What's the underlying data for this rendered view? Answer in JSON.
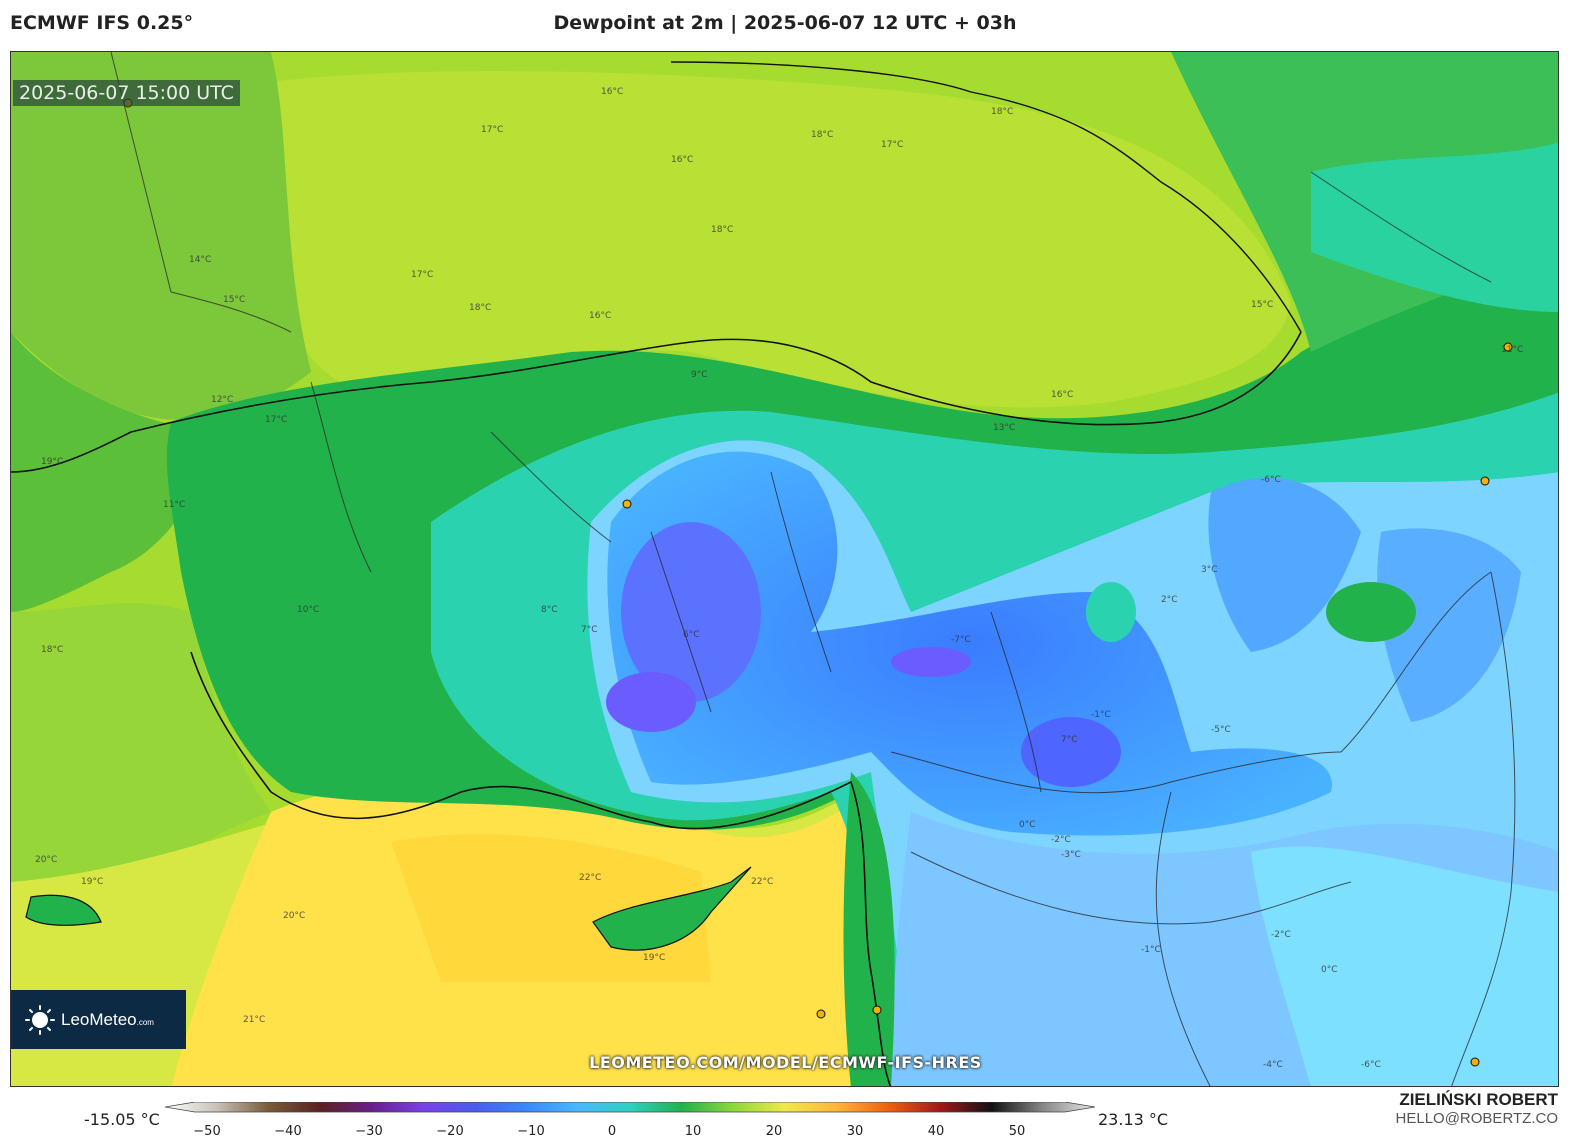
{
  "header": {
    "model": "ECMWF IFS 0.25°",
    "title": "Dewpoint at 2m | 2025-06-07 12 UTC + 03h"
  },
  "map": {
    "timestamp": "2025-06-07 15:00 UTC",
    "watermark": "LEOMETEO.COM/MODEL/ECMWF-IFS-HRES",
    "logo": {
      "name": "LeoMeteo",
      "suffix": ".com",
      "icon": "sun-icon"
    },
    "contour_labels": [
      "16°C",
      "17°C",
      "18°C",
      "17°C",
      "16°C",
      "18°C",
      "18°C",
      "17°C",
      "18°C",
      "16°C",
      "13°C",
      "12°C",
      "14°C",
      "15°C",
      "11°C",
      "19°C",
      "10°C",
      "17°C",
      "16°C",
      "15°C",
      "11°C",
      "9°C",
      "8°C",
      "7°C",
      "6°C",
      "-1°C",
      "2°C",
      "3°C",
      "7°C",
      "-7°C",
      "-6°C",
      "-3°C",
      "-2°C",
      "0°C",
      "-1°C",
      "-2°C",
      "22°C",
      "22°C",
      "19°C",
      "20°C",
      "20°C",
      "21°C",
      "19°C",
      "18°C",
      "0°C",
      "-4°C",
      "-6°C",
      "-5°C"
    ],
    "colors": {
      "sea_north": "#a8dd2e",
      "sea_south": "#ffe24a",
      "land_moist": "#22b24c",
      "land_dry": "#3aa0ff",
      "land_very_dry": "#6470ff"
    }
  },
  "colorbar": {
    "min_label": "-15.05 °C",
    "max_label": "23.13 °C",
    "ticks": [
      "-50",
      "-40",
      "-30",
      "-20",
      "-10",
      "0",
      "10",
      "20",
      "30",
      "40",
      "50"
    ],
    "stops": [
      "#ffffff",
      "#c8c2b8",
      "#7a5b38",
      "#5a2020",
      "#6a1d8c",
      "#7a40e8",
      "#4a5cf0",
      "#3a88ff",
      "#4ab8ff",
      "#2ad2c0",
      "#22b24c",
      "#8cd83a",
      "#f0e94a",
      "#ffb43a",
      "#f06010",
      "#a01818",
      "#111111",
      "#888888",
      "#e8e8e8"
    ]
  },
  "footer": {
    "author": "ZIELIŃSKI ROBERT",
    "email": "HELLO@ROBERTZ.CO"
  }
}
